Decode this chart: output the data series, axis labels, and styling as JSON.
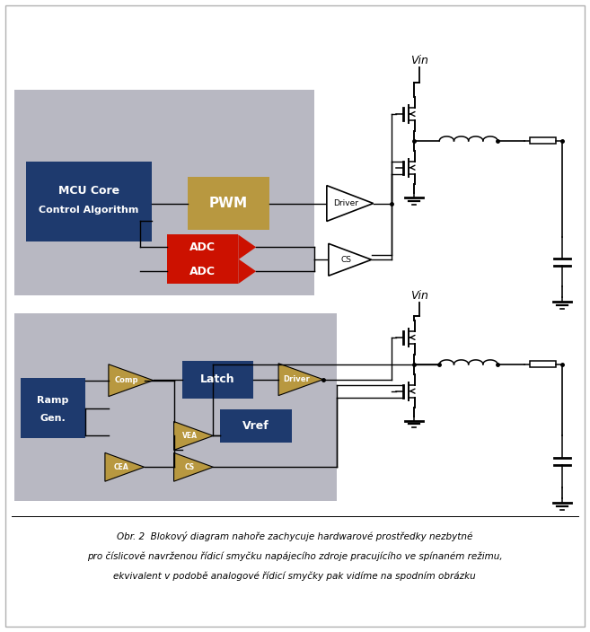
{
  "fig_width": 6.57,
  "fig_height": 7.04,
  "dpi": 100,
  "bg_color": "#ffffff",
  "border_color": "#b0b0b0",
  "gray_color": "#b8b8c2",
  "dark_blue": "#1e3a6e",
  "red": "#cc1100",
  "tan": "#b89840",
  "caption1": "Obr. 2  Blokový diagram nahoře zachycuje hardwarové prostředky nezbytné",
  "caption2": "pro číslicově navrženou řídicí smyčku napájecího zdroje pracujícího ve spínaném režimu,",
  "caption3": "ekvivalent v podobě analogové řídicí smyčky pak vidíme na spodním obrázku"
}
